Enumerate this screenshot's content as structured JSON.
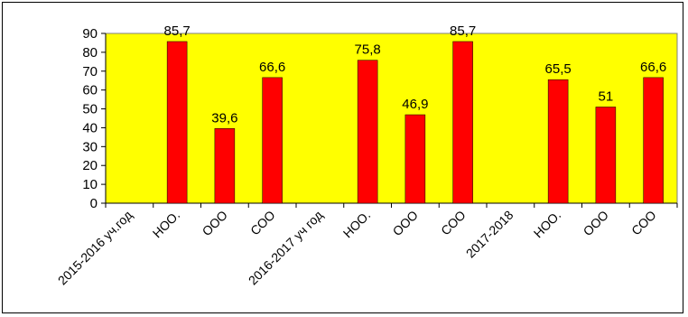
{
  "chart_data": {
    "type": "bar",
    "categories": [
      "2015-2016 уч.год",
      "НОО.",
      "ООО",
      "СОО",
      "2016-2017 уч год",
      "НОО.",
      "ООО",
      "СОО",
      "2017-2018",
      "НОО.",
      "ООО",
      "СОО"
    ],
    "values": [
      null,
      85.7,
      39.6,
      66.6,
      null,
      75.8,
      46.9,
      85.7,
      null,
      65.5,
      51,
      66.6
    ],
    "data_labels": [
      "",
      "85,7",
      "39,6",
      "66,6",
      "",
      "75,8",
      "46,9",
      "85,7",
      "",
      "65,5",
      "51",
      "66,6"
    ],
    "y_ticks": [
      "0",
      "10",
      "20",
      "30",
      "40",
      "50",
      "60",
      "70",
      "80",
      "90"
    ],
    "ylim": [
      0,
      90
    ],
    "title": "",
    "xlabel": "",
    "ylabel": "",
    "grid": false,
    "colors": {
      "bar": "#ff0000",
      "plot_background": "#ffff00",
      "axis": "#000000"
    }
  }
}
